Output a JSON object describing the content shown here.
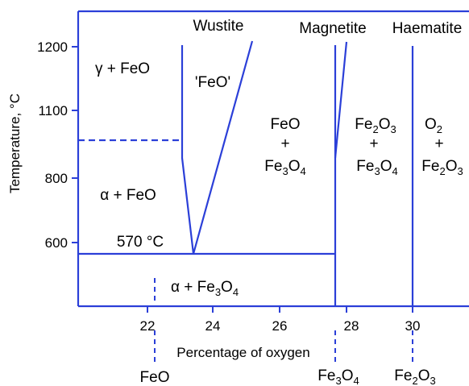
{
  "diagram": {
    "y_axis_label": "Temperature, °C",
    "x_axis_label": "Percentage of oxygen",
    "y_ticks": [
      "1200",
      "1100",
      "800",
      "600"
    ],
    "x_ticks": [
      "22",
      "24",
      "26",
      "28",
      "30"
    ],
    "phase_headers": {
      "wustite": "Wustite",
      "magnetite": "Magnetite",
      "haematite": "Haematite"
    },
    "regions": {
      "gamma_feo": {
        "a": "γ + FeO"
      },
      "feo_quoted": "'FeO'",
      "alpha_feo": {
        "a": "α + FeO"
      },
      "eutectoid": "570 °C",
      "alpha_fe3o4": {
        "a": "α + Fe",
        "sub": "3",
        "b": "O",
        "sub2": "4"
      },
      "feo_fe3o4": {
        "l1": "FeO",
        "l2": "+",
        "l3a": "Fe",
        "l3sub": "3",
        "l3b": "O",
        "l3sub2": "4"
      },
      "fe2o3_fe3o4": {
        "l1a": "Fe",
        "l1sub": "2",
        "l1b": "O",
        "l1sub2": "3",
        "l2": "+",
        "l3a": "Fe",
        "l3sub": "3",
        "l3b": "O",
        "l3sub2": "4"
      },
      "o2_fe2o3": {
        "l1a": "O",
        "l1sub": "2",
        "l2": "+",
        "l3a": "Fe",
        "l3sub": "2",
        "l3b": "O",
        "l3sub2": "3"
      }
    },
    "compound_markers": {
      "feo": "FeO",
      "fe3o4": {
        "a": "Fe",
        "sub": "3",
        "b": "O",
        "sub2": "4"
      },
      "fe2o3": {
        "a": "Fe",
        "sub": "2",
        "b": "O",
        "sub2": "3"
      }
    },
    "colors": {
      "line": "#2b3fd8",
      "text": "#000000",
      "background": "#ffffff"
    }
  }
}
